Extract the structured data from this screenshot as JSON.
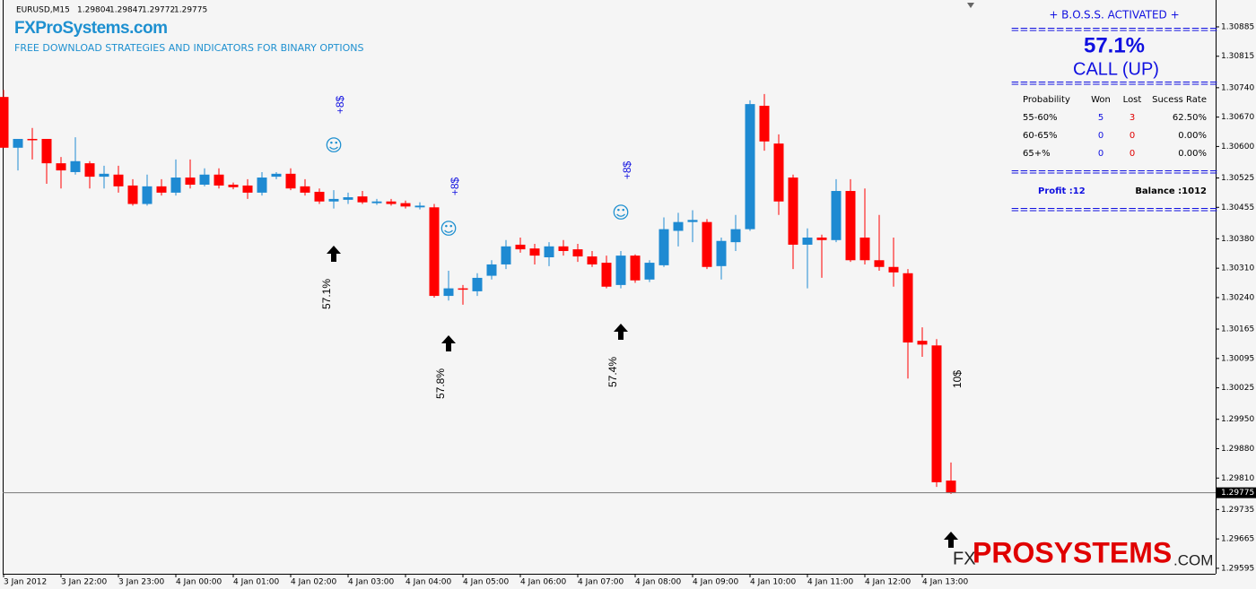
{
  "header": {
    "symbol": "EURUSD,M15",
    "logo": "FXProSystems.com",
    "tagline": "FREE DOWNLOAD STRATEGIES AND INDICATORS FOR BINARY OPTIONS"
  },
  "panel": {
    "title": "+ B.O.S.S. ACTIVATED +",
    "separator": "=======================",
    "probability": "57.1%",
    "signal": "CALL (UP)",
    "columns": [
      "Probability",
      "Won",
      "Lost",
      "Sucess Rate"
    ],
    "rows": [
      [
        "55-60%",
        "5",
        "3",
        "62.50%"
      ],
      [
        "60-65%",
        "0",
        "0",
        "0.00%"
      ],
      [
        "65+%",
        "0",
        "0",
        "0.00%"
      ]
    ],
    "profit": "Profit :12",
    "balance": "Balance :1012"
  },
  "watermark": {
    "prefix": "FX",
    "name": "PROSYSTEMS",
    "suffix": ".COM"
  },
  "chart_data": {
    "type": "candlestick",
    "up_color": "#1e8ad2",
    "down_color": "#ff0000",
    "categories": [
      "3 Jan 2012",
      null,
      null,
      null,
      "3 Jan 22:00",
      null,
      null,
      null,
      "3 Jan 23:00",
      null,
      null,
      null,
      "4 Jan 00:00",
      null,
      null,
      null,
      "4 Jan 01:00",
      null,
      null,
      null,
      "4 Jan 02:00",
      null,
      null,
      null,
      "4 Jan 03:00",
      null,
      null,
      null,
      "4 Jan 04:00",
      null,
      null,
      null,
      "4 Jan 05:00",
      null,
      null,
      null,
      "4 Jan 06:00",
      null,
      null,
      null,
      "4 Jan 07:00",
      null,
      null,
      null,
      "4 Jan 08:00",
      null,
      null,
      null,
      "4 Jan 09:00",
      null,
      null,
      null,
      "4 Jan 10:00",
      null,
      null,
      null,
      "4 Jan 11:00",
      null,
      null,
      null,
      "4 Jan 12:00",
      null,
      null,
      null,
      "4 Jan 13:00",
      null,
      null
    ],
    "open": [
      1.30718,
      1.30597,
      1.30618,
      1.30618,
      1.3056,
      1.30539,
      1.3056,
      1.30528,
      1.30533,
      1.30507,
      1.30463,
      1.30505,
      1.3049,
      1.30526,
      1.30509,
      1.30533,
      1.30509,
      1.30507,
      1.3049,
      1.30528,
      1.30535,
      1.30505,
      1.30492,
      1.30469,
      1.30473,
      1.30481,
      1.30465,
      1.30469,
      1.30465,
      1.30455,
      1.30455,
      1.30244,
      1.30262,
      1.30255,
      1.30292,
      1.30319,
      1.30366,
      1.30357,
      1.30336,
      1.30362,
      1.30355,
      1.30338,
      1.30323,
      1.3027,
      1.3034,
      1.30283,
      1.30317,
      1.30399,
      1.3042,
      1.3042,
      1.30315,
      1.30372,
      1.30403,
      1.30697,
      1.30607,
      1.30526,
      1.30366,
      1.30383,
      1.30377,
      1.30494,
      1.30383,
      1.30329,
      1.30313,
      1.30298,
      1.30137,
      1.30126,
      1.29804
    ],
    "high": [
      1.30735,
      1.30618,
      1.30644,
      1.30618,
      1.30575,
      1.30622,
      1.30565,
      1.30554,
      1.30554,
      1.30522,
      1.30533,
      1.30522,
      1.30569,
      1.30569,
      1.30548,
      1.30548,
      1.30514,
      1.30522,
      1.30539,
      1.30539,
      1.30548,
      1.30522,
      1.305,
      1.30496,
      1.3049,
      1.30494,
      1.30475,
      1.30475,
      1.30471,
      1.30467,
      1.30463,
      1.30304,
      1.3027,
      1.30298,
      1.30329,
      1.30377,
      1.30383,
      1.30368,
      1.30372,
      1.30377,
      1.30368,
      1.30351,
      1.3034,
      1.30351,
      1.30343,
      1.30329,
      1.30431,
      1.30442,
      1.30448,
      1.30427,
      1.30383,
      1.30437,
      1.3071,
      1.30725,
      1.30629,
      1.30533,
      1.30405,
      1.3039,
      1.30522,
      1.30522,
      1.305,
      1.30437,
      1.30383,
      1.30308,
      1.30169,
      1.30141,
      1.29847
    ],
    "low": [
      1.30597,
      1.30543,
      1.30569,
      1.30511,
      1.305,
      1.30533,
      1.305,
      1.305,
      1.3049,
      1.30459,
      1.30459,
      1.30483,
      1.30483,
      1.305,
      1.30505,
      1.305,
      1.30498,
      1.30475,
      1.30483,
      1.30522,
      1.30496,
      1.30483,
      1.30463,
      1.30452,
      1.30463,
      1.30463,
      1.30461,
      1.30459,
      1.30452,
      1.3045,
      1.3024,
      1.30233,
      1.30223,
      1.30244,
      1.30283,
      1.30308,
      1.30347,
      1.30319,
      1.30315,
      1.3034,
      1.30325,
      1.30313,
      1.30262,
      1.30262,
      1.30275,
      1.30277,
      1.30313,
      1.30362,
      1.30372,
      1.30308,
      1.30283,
      1.30351,
      1.30399,
      1.3059,
      1.30437,
      1.30308,
      1.30262,
      1.30287,
      1.30372,
      1.30325,
      1.30319,
      1.30304,
      1.30266,
      1.30047,
      1.30099,
      1.29789,
      1.29772
    ],
    "close": [
      1.30597,
      1.30618,
      1.30616,
      1.3056,
      1.30543,
      1.30565,
      1.30528,
      1.30535,
      1.30505,
      1.30463,
      1.30505,
      1.3049,
      1.30526,
      1.30509,
      1.30533,
      1.30507,
      1.30503,
      1.3049,
      1.30526,
      1.30535,
      1.305,
      1.3049,
      1.30469,
      1.30475,
      1.30479,
      1.30467,
      1.30469,
      1.30463,
      1.30457,
      1.30459,
      1.30244,
      1.30262,
      1.3026,
      1.30287,
      1.30319,
      1.30362,
      1.30355,
      1.3034,
      1.30362,
      1.30351,
      1.30338,
      1.30319,
      1.30266,
      1.3034,
      1.30281,
      1.30323,
      1.30403,
      1.3042,
      1.30425,
      1.30313,
      1.30375,
      1.30403,
      1.30701,
      1.30612,
      1.30469,
      1.30366,
      1.30383,
      1.30377,
      1.30494,
      1.30329,
      1.30329,
      1.30313,
      1.303,
      1.30133,
      1.30128,
      1.298,
      1.29775
    ],
    "ylim": [
      1.29582,
      1.30949
    ],
    "yticks": [
      1.30885,
      1.30815,
      {
        "value": 1.3074,
        "label": "1.30740"
      },
      {
        "value": 1.3067,
        "label": "1.30670"
      },
      {
        "value": 1.306,
        "label": "1.30600"
      },
      1.30525,
      1.30455,
      {
        "value": 1.3038,
        "label": "1.30380"
      },
      {
        "value": 1.3031,
        "label": "1.30310"
      },
      {
        "value": 1.3024,
        "label": "1.30240"
      },
      1.30165,
      1.30095,
      1.30025,
      {
        "value": 1.2995,
        "label": "1.29950"
      },
      {
        "value": 1.2988,
        "label": "1.29880"
      },
      {
        "value": 1.2981,
        "label": "1.29810"
      },
      1.29735,
      1.29665,
      1.29595
    ],
    "signals": [
      {
        "probability": "57.1%",
        "profit": "+8$"
      },
      {
        "probability": "57.8%",
        "profit": "+8$"
      },
      {
        "probability": "57.4%",
        "profit": "+8$"
      },
      {
        "probability": "10$"
      }
    ]
  }
}
